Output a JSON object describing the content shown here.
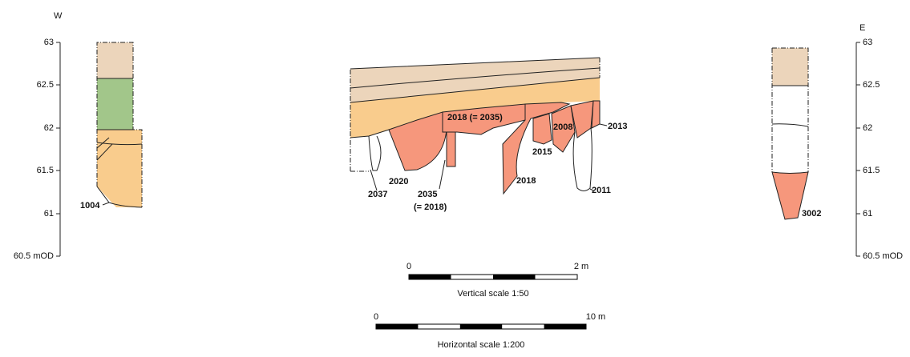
{
  "left_axis": {
    "direction": "W",
    "ticks": [
      "63",
      "62.5",
      "62",
      "61.5",
      "61",
      "60.5 mOD"
    ]
  },
  "right_axis": {
    "direction": "E",
    "ticks": [
      "63",
      "62.5",
      "62",
      "61.5",
      "61",
      "60.5 mOD"
    ]
  },
  "contexts": {
    "c1004": "1004",
    "c2037": "2037",
    "c2020": "2020",
    "c2035": "2035",
    "c2035_note": "(= 2018)",
    "c2018_2035": "2018 (= 2035)",
    "c2018": "2018",
    "c2015": "2015",
    "c2008": "2008",
    "c2013": "2013",
    "c2011": "2011",
    "c3002": "3002"
  },
  "scales": [
    {
      "start": "0",
      "end": "2 m",
      "label": "Vertical scale 1:50"
    },
    {
      "start": "0",
      "end": "10 m",
      "label": "Horizontal scale 1:200"
    }
  ]
}
